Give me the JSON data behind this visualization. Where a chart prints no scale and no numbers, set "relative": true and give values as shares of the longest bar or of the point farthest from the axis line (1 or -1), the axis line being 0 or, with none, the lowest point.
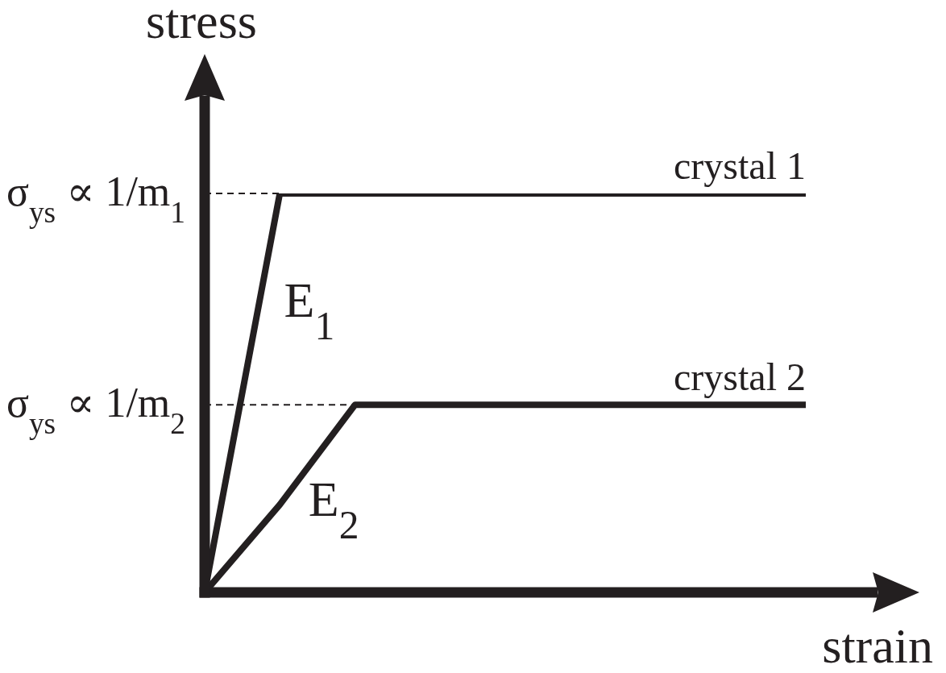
{
  "chart_data": {
    "type": "line",
    "relative": true,
    "xlabel": "strain",
    "ylabel": "stress",
    "marker": "none",
    "line_style": "solid",
    "categories": [
      null,
      null,
      null,
      null,
      null,
      null,
      null,
      null,
      null
    ],
    "series": [
      {
        "name": "crystal 1",
        "color": "#231f20",
        "values": [
          0,
          1,
          1,
          1,
          1,
          1,
          1,
          1,
          1
        ]
      },
      {
        "name": "crystal 2",
        "color": "#231f20",
        "values": [
          0,
          0.22,
          0.47,
          0.47,
          0.47,
          0.47,
          0.47,
          0.47,
          0.47
        ]
      }
    ],
    "ref_lines": [
      {
        "axis": "y",
        "value": 1,
        "label": "σ$_{ys}$ ∝ 1/m$_{1}$",
        "color": "#231f20",
        "line_style": "dashed"
      },
      {
        "axis": "y",
        "value": 0.47,
        "label": "σ$_{ys}$ ∝ 1/m$_{2}$",
        "color": "#231f20",
        "line_style": "dashed"
      }
    ],
    "annotations": [
      "E$_{1}$",
      "E$_{2}$"
    ]
  }
}
